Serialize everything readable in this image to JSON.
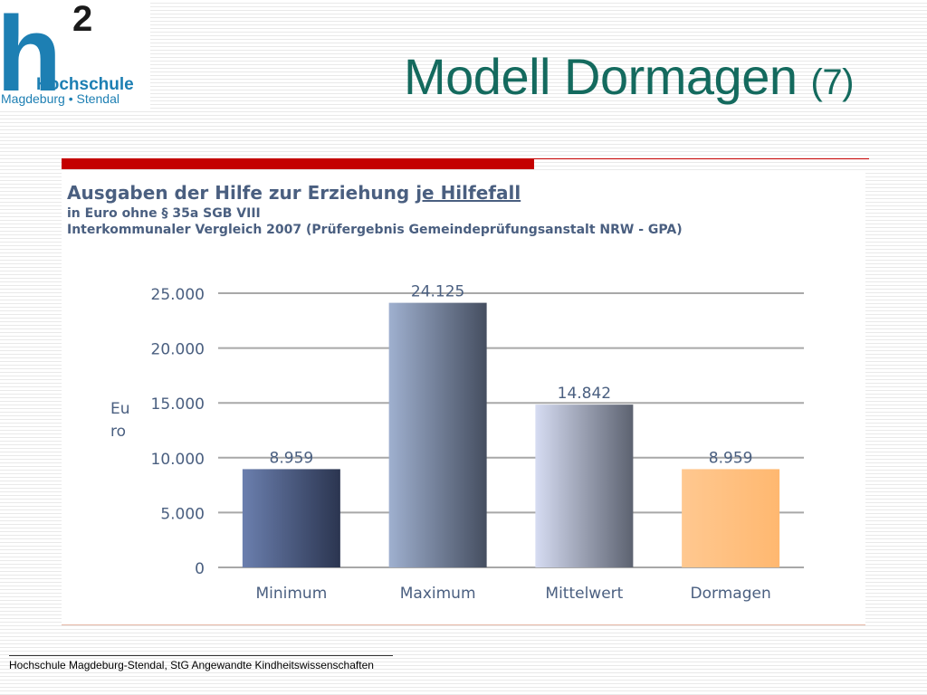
{
  "logo": {
    "superscript": "2",
    "letter": "h",
    "line1": "Hochschule",
    "line2": "Magdeburg • Stendal"
  },
  "slide": {
    "title": "Modell Dormagen",
    "title_number": "(7)"
  },
  "footer": {
    "text": "Hochschule Magdeburg-Stendal, StG Angewandte Kindheitswissenschaften"
  },
  "colors": {
    "title": "#146a5e",
    "logo": "#1d7fb3",
    "accent_bar": "#c40000",
    "chart_text": "#4a5f80"
  },
  "chart_data": {
    "type": "bar",
    "title_prefix": "Ausgaben der Hilfe zur Erziehung ",
    "title_emphasis": "je Hilfefall",
    "subtitle_1": "in Euro ohne § 35a SGB VIII",
    "subtitle_2": "Interkommunaler Vergleich 2007 (Prüfergebnis Gemeindeprüfungsanstalt NRW - GPA)",
    "ylabel_line1": "Eu",
    "ylabel_line2": "ro",
    "xlabel": "",
    "categories": [
      "Minimum",
      "Maximum",
      "Mittelwert",
      "Dormagen"
    ],
    "values": [
      8959,
      24125,
      14842,
      8959
    ],
    "value_labels": [
      "8.959",
      "24.125",
      "14.842",
      "8.959"
    ],
    "ylim": [
      0,
      25000
    ],
    "yticks": [
      0,
      5000,
      10000,
      15000,
      20000,
      25000
    ],
    "ytick_labels": [
      "0",
      "5.000",
      "10.000",
      "15.000",
      "20.000",
      "25.000"
    ],
    "grid": true,
    "legend": "none",
    "bar_colors": [
      [
        "#6b7fae",
        "#2b3550"
      ],
      [
        "#9fb0cf",
        "#454e60"
      ],
      [
        "#d6dcf2",
        "#5c6270"
      ],
      [
        "#ffc890",
        "#ffb870"
      ]
    ]
  }
}
